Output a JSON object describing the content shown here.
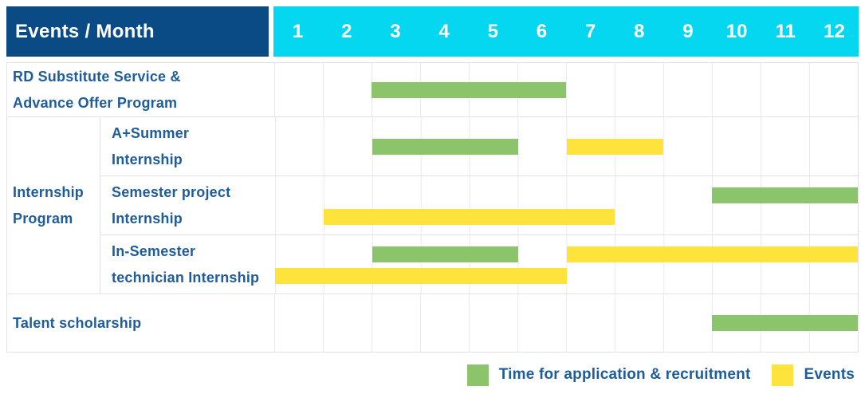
{
  "header": {
    "title": "Events / Month",
    "months": [
      "1",
      "2",
      "3",
      "4",
      "5",
      "6",
      "7",
      "8",
      "9",
      "10",
      "11",
      "12"
    ]
  },
  "group_label_lines": [
    "Internship",
    "Program"
  ],
  "rows": [
    {
      "id": "rd-substitute",
      "label_lines": [
        "RD Substitute Service &",
        "Advance Offer Program"
      ],
      "section": "top",
      "bars": [
        {
          "color": "green",
          "start": 3,
          "end": 6,
          "line": "center"
        }
      ]
    },
    {
      "id": "a-summer-internship",
      "label_lines": [
        "A+Summer",
        "Internship"
      ],
      "section": "group",
      "bars": [
        {
          "color": "green",
          "start": 3,
          "end": 5,
          "line": "center"
        },
        {
          "color": "yellow",
          "start": 7,
          "end": 8,
          "line": "center"
        }
      ]
    },
    {
      "id": "semester-project-internship",
      "label_lines": [
        "Semester project",
        "Internship"
      ],
      "section": "group",
      "bars": [
        {
          "color": "green",
          "start": 10,
          "end": 12,
          "line": "top"
        },
        {
          "color": "yellow",
          "start": 2,
          "end": 7,
          "line": "bottom"
        }
      ]
    },
    {
      "id": "in-semester-technician-internship",
      "label_lines": [
        "In-Semester",
        "technician Internship"
      ],
      "section": "group",
      "bars": [
        {
          "color": "green",
          "start": 3,
          "end": 5,
          "line": "top"
        },
        {
          "color": "yellow",
          "start": 7,
          "end": 12,
          "line": "top"
        },
        {
          "color": "yellow",
          "start": 1,
          "end": 6,
          "line": "bottom"
        }
      ]
    },
    {
      "id": "talent-scholarship",
      "label_lines": [
        "Talent scholarship"
      ],
      "section": "bottom",
      "bars": [
        {
          "color": "green",
          "start": 10,
          "end": 12,
          "line": "center"
        }
      ]
    }
  ],
  "legend": [
    {
      "color": "green",
      "label": "Time for application & recruitment"
    },
    {
      "color": "yellow",
      "label": "Events"
    }
  ],
  "colors": {
    "header_bg": "#0b4b85",
    "month_bg": "#04d7ef",
    "green": "#8bc46a",
    "yellow": "#ffe33d",
    "text": "#1e5c9c",
    "grid": "#eaeaea",
    "border": "#e2e2e2"
  },
  "chart_data": {
    "type": "table",
    "title": "Events / Month",
    "x_axis": {
      "label": "Month",
      "ticks": [
        1,
        2,
        3,
        4,
        5,
        6,
        7,
        8,
        9,
        10,
        11,
        12
      ]
    },
    "legend": [
      "Time for application & recruitment",
      "Events"
    ],
    "rows": [
      {
        "event": "RD Substitute Service & Advance Offer Program",
        "application_recruitment_months": [
          [
            3,
            6
          ]
        ],
        "events_months": []
      },
      {
        "event": "Internship Program - A+Summer Internship",
        "application_recruitment_months": [
          [
            3,
            5
          ]
        ],
        "events_months": [
          [
            7,
            8
          ]
        ]
      },
      {
        "event": "Internship Program - Semester project Internship",
        "application_recruitment_months": [
          [
            10,
            12
          ]
        ],
        "events_months": [
          [
            2,
            7
          ]
        ]
      },
      {
        "event": "Internship Program - In-Semester technician Internship",
        "application_recruitment_months": [
          [
            3,
            5
          ]
        ],
        "events_months": [
          [
            1,
            6
          ],
          [
            7,
            12
          ]
        ]
      },
      {
        "event": "Talent scholarship",
        "application_recruitment_months": [
          [
            10,
            12
          ]
        ],
        "events_months": []
      }
    ]
  }
}
